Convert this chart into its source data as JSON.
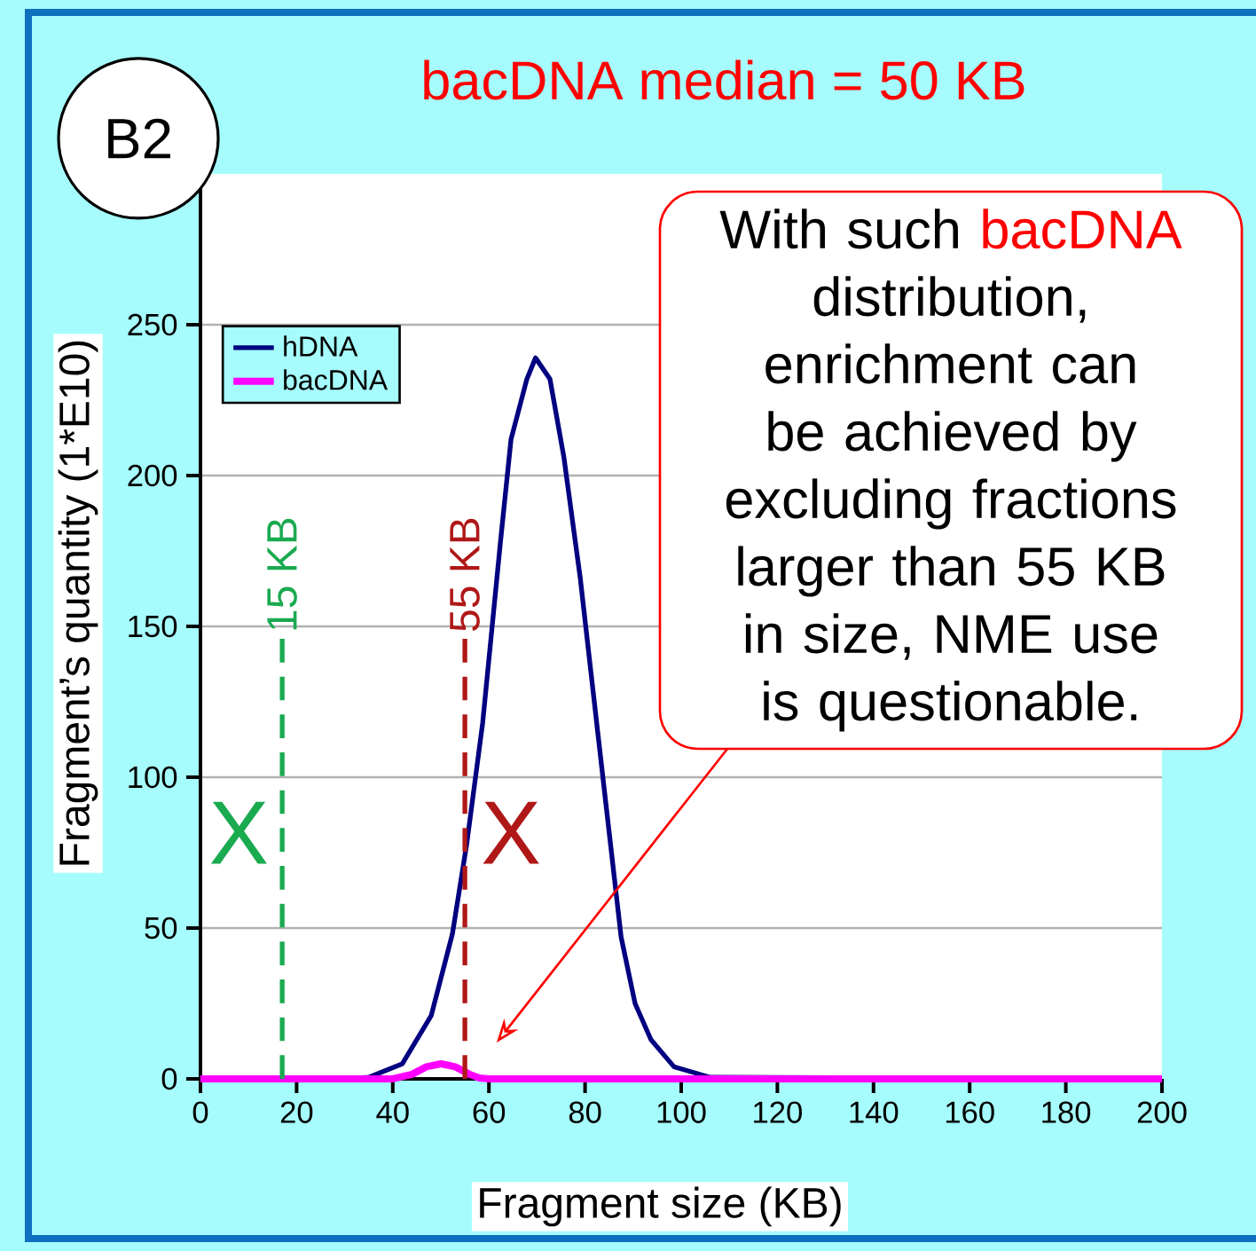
{
  "chart_data": {
    "type": "line",
    "title": "bacDNA median = 50 KB",
    "xlabel": "Fragment size (KB)",
    "ylabel": "Fragment’s quantity (1*E10)",
    "xlim": [
      0,
      200
    ],
    "ylim": [
      0,
      300
    ],
    "xticks": [
      0,
      20,
      40,
      60,
      80,
      100,
      120,
      140,
      160,
      180,
      200
    ],
    "yticks": [
      0,
      50,
      100,
      150,
      200,
      250
    ],
    "grid": "y",
    "legend": "top left",
    "series": [
      {
        "name": "hDNA",
        "color": "#000080",
        "x": [
          0,
          30,
          35,
          42,
          48,
          52.4,
          55.4,
          58.7,
          62.4,
          64.6,
          67.9,
          69.7,
          72.7,
          75.6,
          79,
          82.7,
          87.5,
          90.4,
          93.7,
          98.5,
          106,
          200
        ],
        "values": [
          0,
          0,
          0.5,
          5,
          21,
          48,
          78,
          118,
          178,
          212,
          232,
          239,
          232,
          206,
          166,
          114,
          47,
          25,
          13,
          4,
          0.5,
          0
        ]
      },
      {
        "name": "bacDNA",
        "color": "#ff00ff",
        "x": [
          0,
          40,
          44,
          47,
          50,
          53,
          56,
          58,
          60,
          200
        ],
        "values": [
          0,
          0,
          1.5,
          4,
          5,
          4,
          1.5,
          0.3,
          0,
          0
        ]
      }
    ],
    "ref_lines": [
      {
        "axis": "x",
        "value": 17,
        "label": "15 KB",
        "color": "#1aaa50",
        "line_style": "dashed"
      },
      {
        "axis": "x",
        "value": 55,
        "label": "55 KB",
        "color": "#b01818",
        "line_style": "dashed"
      }
    ],
    "annotations": [
      "B2",
      "X",
      "X",
      "With such",
      "bacDNA",
      "distribution, enrichment can be achieved by excluding fractions larger than 55 KB in size, NME use is questionable."
    ]
  }
}
